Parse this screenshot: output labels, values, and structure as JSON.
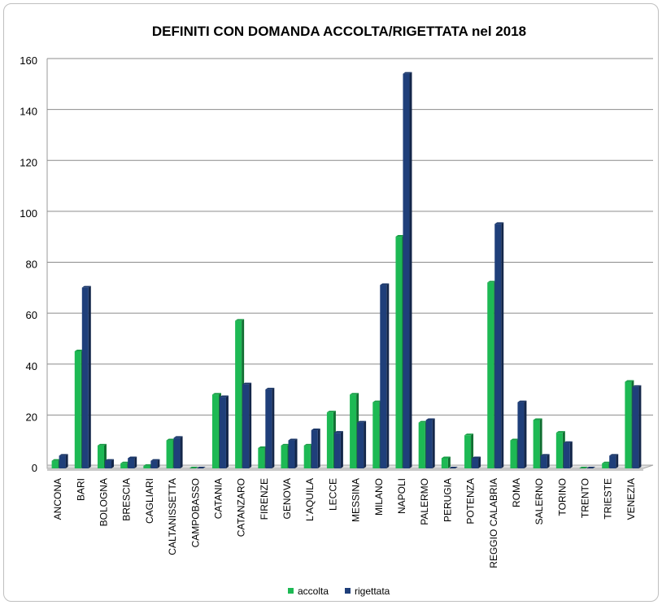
{
  "chart_data": {
    "type": "bar",
    "title": "DEFINITI CON DOMANDA ACCOLTA/RIGETTATA nel 2018",
    "categories": [
      "ANCONA",
      "BARI",
      "BOLOGNA",
      "BRESCIA",
      "CAGLIARI",
      "CALTANISSETTA",
      "CAMPOBASSO",
      "CATANIA",
      "CATANZARO",
      "FIRENZE",
      "GENOVA",
      "L'AQUILA",
      "LECCE",
      "MESSINA",
      "MILANO",
      "NAPOLI",
      "PALERMO",
      "PERUGIA",
      "POTENZA",
      "REGGIO CALABRIA",
      "ROMA",
      "SALERNO",
      "TORINO",
      "TRENTO",
      "TRIESTE",
      "VENEZIA"
    ],
    "series": [
      {
        "name": "accolta",
        "color": "#1db954",
        "values": [
          3,
          46,
          9,
          2,
          1,
          11,
          0,
          29,
          58,
          8,
          9,
          9,
          22,
          29,
          26,
          91,
          18,
          4,
          13,
          73,
          11,
          19,
          14,
          0,
          2,
          34
        ]
      },
      {
        "name": "rigettata",
        "color": "#1f3f7a",
        "values": [
          5,
          71,
          3,
          4,
          3,
          12,
          0,
          28,
          33,
          31,
          11,
          15,
          14,
          18,
          72,
          155,
          19,
          0,
          4,
          96,
          26,
          5,
          10,
          0,
          5,
          32
        ]
      }
    ],
    "ylim": [
      0,
      160
    ],
    "yticks": [
      0,
      20,
      40,
      60,
      80,
      100,
      120,
      140,
      160
    ],
    "grid": true,
    "legend_position": "bottom"
  }
}
